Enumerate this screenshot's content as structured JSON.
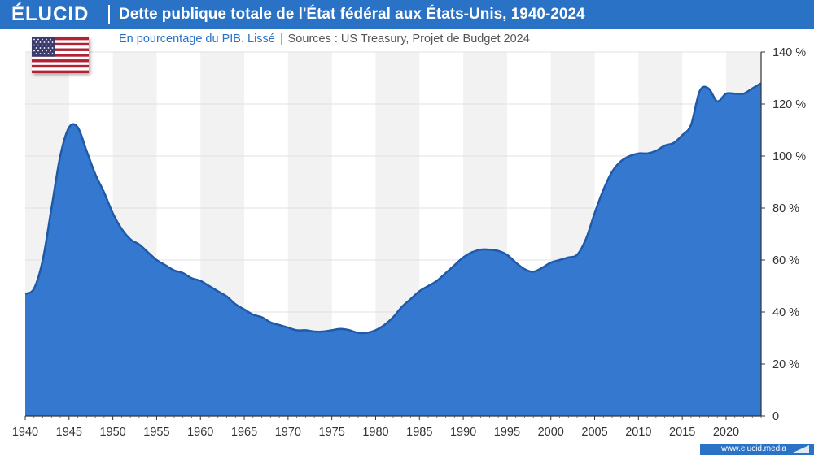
{
  "header": {
    "logo": "ÉLUCID",
    "title": "Dette publique totale de l'État fédéral aux États-Unis, 1940-2024",
    "subtitle": "En pourcentage du PIB. Lissé",
    "separator": "|",
    "sources": "Sources : US Treasury, Projet de Budget 2024"
  },
  "footer": {
    "url": "www.elucid.media"
  },
  "flag": {
    "icon": "us-flag-icon"
  },
  "colors": {
    "brand": "#2a72c6",
    "area_fill": "#3478d0",
    "area_line": "#1f5aa8",
    "band": "#f2f2f2"
  },
  "chart_data": {
    "type": "area",
    "title": "Dette publique totale de l'État fédéral aux États-Unis, 1940-2024",
    "subtitle": "En pourcentage du PIB. Lissé",
    "xlabel": "",
    "ylabel": "",
    "xlim": [
      1940,
      2024
    ],
    "ylim": [
      0,
      140
    ],
    "x_ticks": [
      1940,
      1945,
      1950,
      1955,
      1960,
      1965,
      1970,
      1975,
      1980,
      1985,
      1990,
      1995,
      2000,
      2005,
      2010,
      2015,
      2020
    ],
    "y_ticks": [
      0,
      20,
      40,
      60,
      80,
      100,
      120,
      140
    ],
    "y_tick_labels": [
      "0",
      "20 %",
      "40 %",
      "60 %",
      "80 %",
      "100 %",
      "120 %",
      "140 %"
    ],
    "y_axis_position": "right",
    "grid": true,
    "alternating_bands": true,
    "x": [
      1940,
      1941,
      1942,
      1943,
      1944,
      1945,
      1946,
      1947,
      1948,
      1949,
      1950,
      1951,
      1952,
      1953,
      1954,
      1955,
      1956,
      1957,
      1958,
      1959,
      1960,
      1961,
      1962,
      1963,
      1964,
      1965,
      1966,
      1967,
      1968,
      1969,
      1970,
      1971,
      1972,
      1973,
      1974,
      1975,
      1976,
      1977,
      1978,
      1979,
      1980,
      1981,
      1982,
      1983,
      1984,
      1985,
      1986,
      1987,
      1988,
      1989,
      1990,
      1991,
      1992,
      1993,
      1994,
      1995,
      1996,
      1997,
      1998,
      1999,
      2000,
      2001,
      2002,
      2003,
      2004,
      2005,
      2006,
      2007,
      2008,
      2009,
      2010,
      2011,
      2012,
      2013,
      2014,
      2015,
      2016,
      2017,
      2018,
      2019,
      2020,
      2021,
      2022,
      2023,
      2024
    ],
    "values": [
      47,
      49,
      60,
      80,
      100,
      111,
      111,
      102,
      93,
      86,
      78,
      72,
      68,
      66,
      63,
      60,
      58,
      56,
      55,
      53,
      52,
      50,
      48,
      46,
      43,
      41,
      39,
      38,
      36,
      35,
      34,
      33,
      33,
      32.5,
      32.5,
      33,
      33.5,
      33,
      32,
      32,
      33,
      35,
      38,
      42,
      45,
      48,
      50,
      52,
      55,
      58,
      61,
      63,
      64,
      64,
      63.5,
      62,
      59,
      56.5,
      55.5,
      57,
      59,
      60,
      61,
      62,
      68,
      78,
      87,
      94,
      98,
      100,
      101,
      101,
      102,
      104,
      105,
      108,
      112,
      125,
      126,
      121,
      124,
      124,
      124,
      126,
      128
    ]
  }
}
